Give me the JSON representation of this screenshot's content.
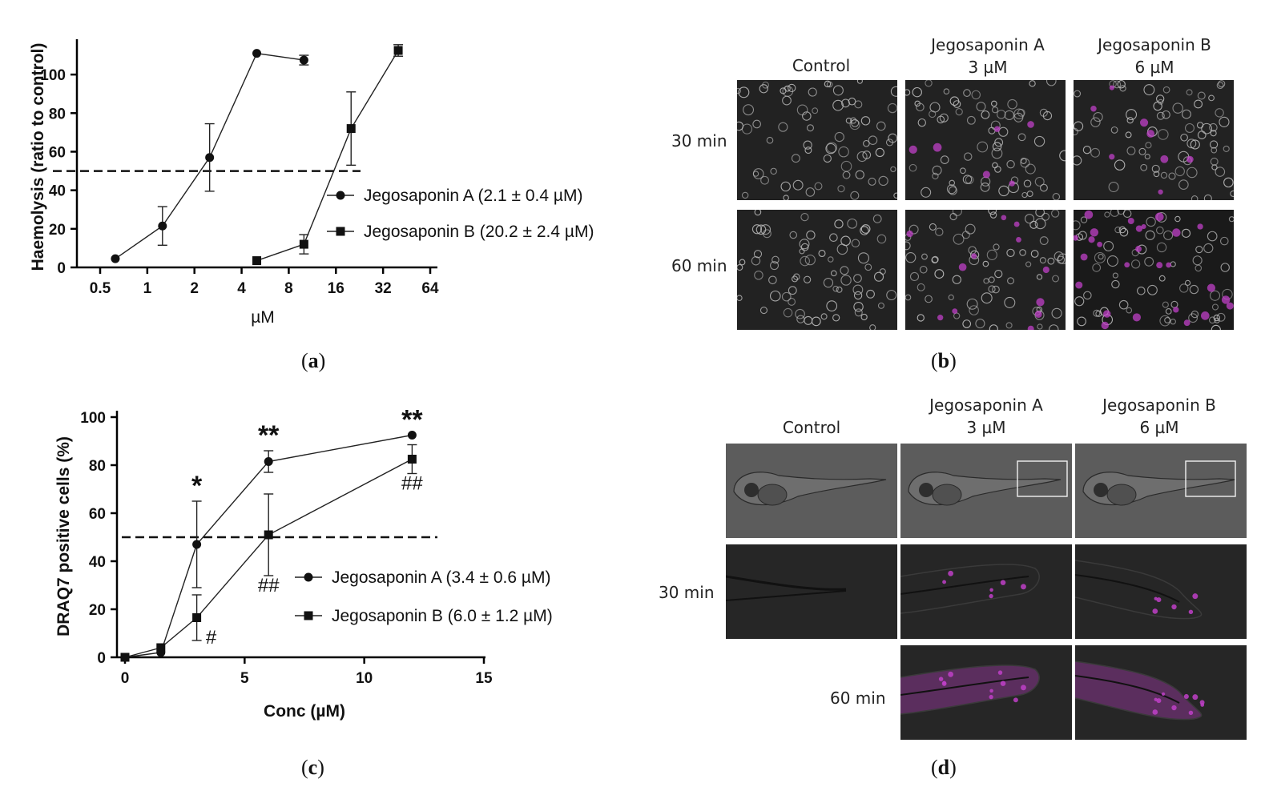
{
  "panel_a": {
    "caption_letter": "a",
    "chart_data": {
      "type": "line",
      "xscale": "log2",
      "xticks": [
        "0.5",
        "1",
        "2",
        "4",
        "8",
        "16",
        "32",
        "64"
      ],
      "yticks": [
        "0",
        "20",
        "40",
        "60",
        "80",
        "100"
      ],
      "xlabel": "µM",
      "ylabel": "Haemolysis (ratio to control)",
      "xlim": [
        0.5,
        64
      ],
      "ylim": [
        0,
        115
      ],
      "reference_line": 50,
      "legend_position": "center-right",
      "series": [
        {
          "name": "Jegosaponin A (2.1 ± 0.4 µM)",
          "marker": "circle",
          "x": [
            0.625,
            1.25,
            2.5,
            5,
            10
          ],
          "y": [
            4.5,
            21.5,
            57,
            111,
            107.5
          ],
          "err": [
            0,
            10,
            17.5,
            0,
            2.5
          ]
        },
        {
          "name": "Jegosaponin B (20.2 ± 2.4 µM)",
          "marker": "square",
          "x": [
            5,
            10,
            20,
            40
          ],
          "y": [
            3.5,
            12,
            72,
            112.5
          ],
          "err": [
            0,
            5,
            19,
            3
          ]
        }
      ]
    }
  },
  "panel_c": {
    "caption_letter": "c",
    "chart_data": {
      "type": "line",
      "xticks": [
        "0",
        "5",
        "10",
        "15"
      ],
      "yticks": [
        "0",
        "20",
        "40",
        "60",
        "80",
        "100"
      ],
      "xlabel": "Conc (µM)",
      "ylabel": "DRAQ7 positive cells (%)",
      "xlim": [
        0,
        15
      ],
      "ylim": [
        0,
        100
      ],
      "reference_line": 50,
      "legend_position": "center-right",
      "series": [
        {
          "name": "Jegosaponin A (3.4 ± 0.6 µM)",
          "marker": "circle",
          "x": [
            0,
            1.5,
            3,
            6,
            12
          ],
          "y": [
            0,
            2,
            47,
            81.5,
            92.5
          ],
          "err": [
            0,
            0,
            18,
            4.5,
            0
          ],
          "annotations": [
            "",
            "",
            "*",
            "**",
            "**"
          ]
        },
        {
          "name": "Jegosaponin B (6.0 ± 1.2 µM)",
          "marker": "square",
          "x": [
            0,
            1.5,
            3,
            6,
            12
          ],
          "y": [
            0,
            4,
            16.5,
            51,
            82.5
          ],
          "err": [
            0,
            0,
            9.5,
            17,
            6
          ],
          "annotations": [
            "",
            "",
            "#",
            "##",
            "##"
          ]
        }
      ]
    }
  },
  "panel_b": {
    "caption_letter": "b",
    "columns": [
      {
        "line1": "Control",
        "line2": ""
      },
      {
        "line1": "Jegosaponin A",
        "line2": "3 µM"
      },
      {
        "line1": "Jegosaponin B",
        "line2": "6 µM"
      }
    ],
    "rows": [
      "30 min",
      "60 min"
    ]
  },
  "panel_d": {
    "caption_letter": "d",
    "columns": [
      {
        "line1": "Control",
        "line2": ""
      },
      {
        "line1": "Jegosaponin A",
        "line2": "3 µM"
      },
      {
        "line1": "Jegosaponin B",
        "line2": "6 µM"
      }
    ],
    "rows": [
      "30 min",
      "60 min"
    ]
  },
  "colors": {
    "axis": "#000000",
    "image_bg": "#222222",
    "brightfield_bg": "#5a5a5a",
    "stain": "#c040c8"
  }
}
